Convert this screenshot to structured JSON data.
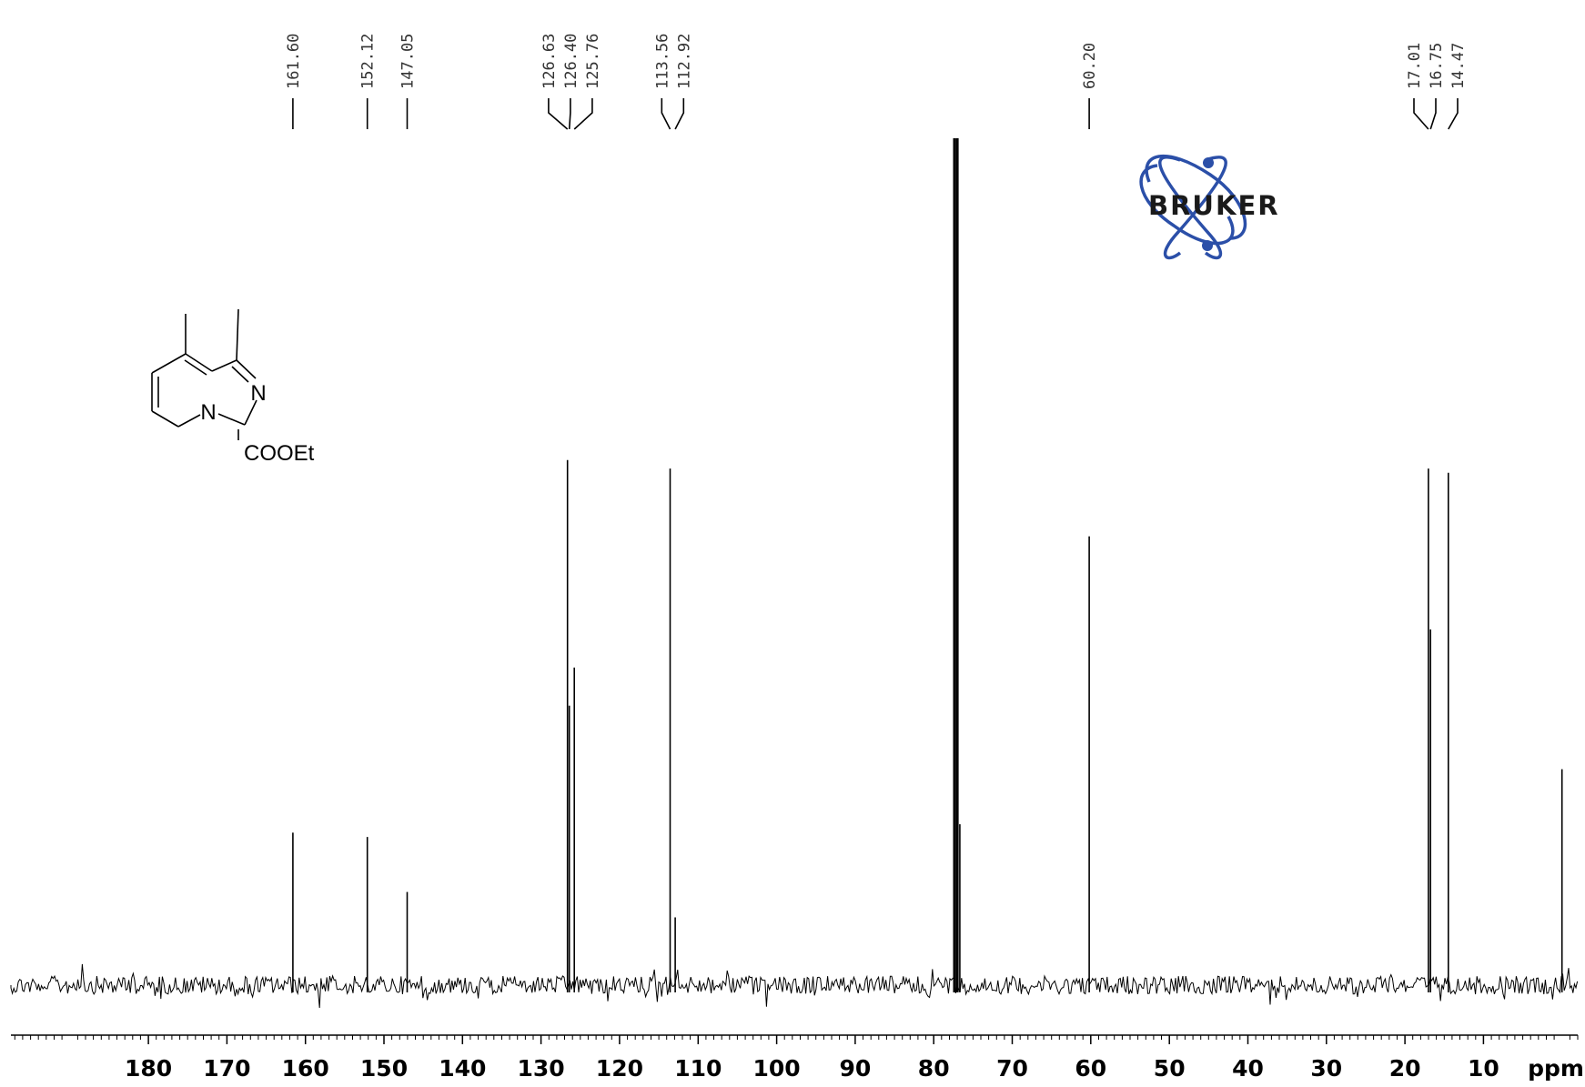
{
  "chart_data": {
    "type": "line",
    "title": "",
    "xlabel": "",
    "ylabel": "",
    "x_unit_label": "ppm",
    "x_reversed": true,
    "xlim": [
      197.5,
      -2.0
    ],
    "x_ticks": [
      180,
      170,
      160,
      150,
      140,
      130,
      120,
      110,
      100,
      90,
      80,
      70,
      60,
      50,
      40,
      30,
      20,
      10
    ],
    "grid": false,
    "legend": "none",
    "peak_labels": [
      "161.60",
      "152.12",
      "147.05",
      "126.63",
      "126.40",
      "125.76",
      "113.56",
      "112.92",
      "60.20",
      "17.01",
      "16.75",
      "14.47"
    ],
    "series": [
      {
        "peaks": [
          {
            "x": 161.6,
            "y": 18
          },
          {
            "x": 152.12,
            "y": 17.5
          },
          {
            "x": 147.05,
            "y": 11
          },
          {
            "x": 126.63,
            "y": 62
          },
          {
            "x": 126.4,
            "y": 33
          },
          {
            "x": 125.76,
            "y": 37.5
          },
          {
            "x": 113.56,
            "y": 61
          },
          {
            "x": 112.92,
            "y": 8
          },
          {
            "x": 77.36,
            "y": 100
          },
          {
            "x": 77.0,
            "y": 100
          },
          {
            "x": 76.68,
            "y": 19
          },
          {
            "x": 60.2,
            "y": 53
          },
          {
            "x": 17.01,
            "y": 61
          },
          {
            "x": 16.75,
            "y": 42
          },
          {
            "x": 14.47,
            "y": 60.5
          },
          {
            "x": 0.0,
            "y": 25.5
          }
        ]
      }
    ],
    "structure": {
      "atoms": [
        "N",
        "N",
        "COOEt"
      ]
    }
  },
  "logo": {
    "text": "BRUKER",
    "color": "#2b4fa8"
  },
  "colors": {
    "trace": "#000000",
    "label_line": "#000000"
  }
}
